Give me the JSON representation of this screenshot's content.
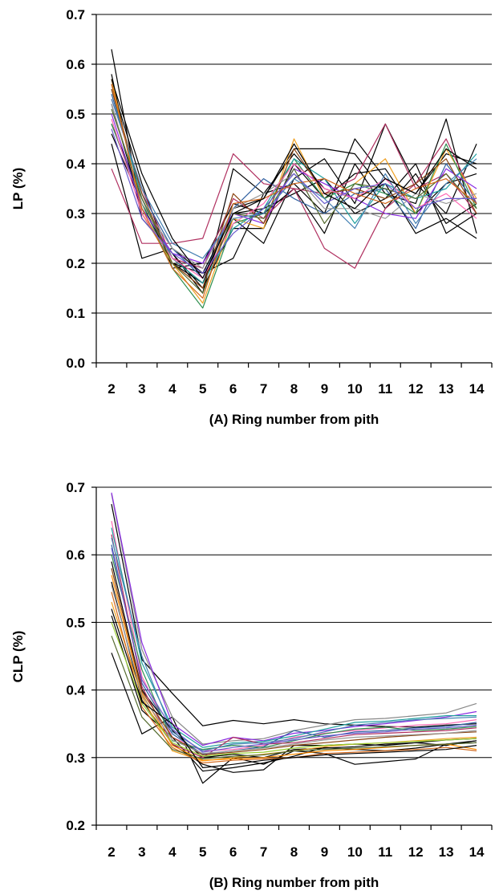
{
  "chart_data": [
    {
      "type": "line",
      "panel": "A",
      "xlabel": "(A)   Ring number from pith",
      "ylabel": "LP (%)",
      "categories": [
        "2",
        "3",
        "4",
        "5",
        "6",
        "7",
        "8",
        "9",
        "10",
        "11",
        "12",
        "13",
        "14"
      ],
      "ylim": [
        0.0,
        0.7
      ],
      "yticks": [
        "0.0",
        "0.1",
        "0.2",
        "0.3",
        "0.4",
        "0.5",
        "0.6",
        "0.7"
      ],
      "ytick_values": [
        0.0,
        0.1,
        0.2,
        0.3,
        0.4,
        0.5,
        0.6,
        0.7
      ],
      "grid": "horizontal",
      "legend": "none",
      "series": [
        {
          "color": "#000000",
          "values": [
            0.63,
            0.3,
            0.2,
            0.16,
            0.31,
            0.33,
            0.43,
            0.43,
            0.42,
            0.34,
            0.32,
            0.49,
            0.26
          ]
        },
        {
          "color": "#000000",
          "values": [
            0.58,
            0.29,
            0.22,
            0.14,
            0.39,
            0.34,
            0.36,
            0.3,
            0.45,
            0.37,
            0.34,
            0.42,
            0.4
          ]
        },
        {
          "color": "#000000",
          "values": [
            0.44,
            0.21,
            0.23,
            0.18,
            0.21,
            0.34,
            0.42,
            0.35,
            0.33,
            0.36,
            0.26,
            0.29,
            0.25
          ]
        },
        {
          "color": "#000000",
          "values": [
            0.48,
            0.33,
            0.21,
            0.16,
            0.29,
            0.24,
            0.37,
            0.41,
            0.32,
            0.48,
            0.36,
            0.3,
            0.44
          ]
        },
        {
          "color": "#000000",
          "values": [
            0.56,
            0.36,
            0.19,
            0.2,
            0.32,
            0.3,
            0.35,
            0.26,
            0.4,
            0.31,
            0.38,
            0.28,
            0.32
          ]
        },
        {
          "color": "#000000",
          "values": [
            0.52,
            0.31,
            0.22,
            0.15,
            0.27,
            0.27,
            0.4,
            0.33,
            0.38,
            0.39,
            0.3,
            0.36,
            0.38
          ]
        },
        {
          "color": "#000000",
          "values": [
            0.46,
            0.32,
            0.2,
            0.18,
            0.3,
            0.31,
            0.34,
            0.37,
            0.3,
            0.33,
            0.4,
            0.26,
            0.3
          ]
        },
        {
          "color": "#b03060",
          "values": [
            0.39,
            0.24,
            0.24,
            0.25,
            0.42,
            0.36,
            0.35,
            0.23,
            0.19,
            0.31,
            0.36,
            0.45,
            0.32
          ]
        },
        {
          "color": "#b03060",
          "values": [
            0.53,
            0.35,
            0.21,
            0.19,
            0.33,
            0.29,
            0.35,
            0.34,
            0.37,
            0.48,
            0.35,
            0.38,
            0.3
          ]
        },
        {
          "color": "#f0a020",
          "values": [
            0.57,
            0.3,
            0.2,
            0.12,
            0.29,
            0.27,
            0.45,
            0.33,
            0.36,
            0.41,
            0.3,
            0.43,
            0.33
          ]
        },
        {
          "color": "#2f8f4f",
          "values": [
            0.48,
            0.32,
            0.19,
            0.11,
            0.28,
            0.3,
            0.41,
            0.33,
            0.36,
            0.34,
            0.3,
            0.44,
            0.31
          ]
        },
        {
          "color": "#3060a0",
          "values": [
            0.54,
            0.34,
            0.23,
            0.17,
            0.31,
            0.37,
            0.33,
            0.3,
            0.34,
            0.35,
            0.27,
            0.4,
            0.32
          ]
        },
        {
          "color": "#20a0a0",
          "values": [
            0.55,
            0.33,
            0.21,
            0.16,
            0.27,
            0.31,
            0.41,
            0.37,
            0.28,
            0.36,
            0.33,
            0.35,
            0.42
          ]
        },
        {
          "color": "#8a2be2",
          "values": [
            0.5,
            0.31,
            0.22,
            0.2,
            0.3,
            0.28,
            0.39,
            0.36,
            0.33,
            0.3,
            0.29,
            0.39,
            0.35
          ]
        },
        {
          "color": "#999999",
          "values": [
            0.52,
            0.32,
            0.23,
            0.19,
            0.31,
            0.34,
            0.38,
            0.31,
            0.31,
            0.29,
            0.34,
            0.32,
            0.34
          ]
        },
        {
          "color": "#8b4513",
          "values": [
            0.55,
            0.34,
            0.2,
            0.15,
            0.34,
            0.28,
            0.43,
            0.34,
            0.35,
            0.33,
            0.36,
            0.41,
            0.3
          ]
        },
        {
          "color": "#ff69b4",
          "values": [
            0.49,
            0.3,
            0.21,
            0.17,
            0.28,
            0.32,
            0.4,
            0.35,
            0.33,
            0.37,
            0.31,
            0.34,
            0.29
          ]
        },
        {
          "color": "#556b2f",
          "values": [
            0.51,
            0.33,
            0.2,
            0.14,
            0.3,
            0.29,
            0.39,
            0.28,
            0.36,
            0.35,
            0.33,
            0.38,
            0.31
          ]
        },
        {
          "color": "#4682b4",
          "values": [
            0.53,
            0.35,
            0.24,
            0.21,
            0.29,
            0.3,
            0.37,
            0.33,
            0.27,
            0.38,
            0.28,
            0.36,
            0.41
          ]
        },
        {
          "color": "#d2691e",
          "values": [
            0.56,
            0.31,
            0.19,
            0.13,
            0.32,
            0.33,
            0.36,
            0.37,
            0.34,
            0.32,
            0.35,
            0.37,
            0.32
          ]
        },
        {
          "color": "#6a5acd",
          "values": [
            0.47,
            0.29,
            0.22,
            0.18,
            0.26,
            0.31,
            0.38,
            0.32,
            0.35,
            0.36,
            0.31,
            0.33,
            0.33
          ]
        },
        {
          "color": "#000000",
          "values": [
            0.57,
            0.38,
            0.25,
            0.17,
            0.3,
            0.33,
            0.44,
            0.34,
            0.31,
            0.37,
            0.34,
            0.43,
            0.39
          ]
        }
      ]
    },
    {
      "type": "line",
      "panel": "B",
      "xlabel": "(B)   Ring number from pith",
      "ylabel": "CLP (%)",
      "categories": [
        "2",
        "3",
        "4",
        "5",
        "6",
        "7",
        "8",
        "9",
        "10",
        "11",
        "12",
        "13",
        "14"
      ],
      "ylim": [
        0.2,
        0.7
      ],
      "yticks": [
        "0.2",
        "0.3",
        "0.4",
        "0.5",
        "0.6",
        "0.7"
      ],
      "ytick_values": [
        0.2,
        0.3,
        0.4,
        0.5,
        0.6,
        0.7
      ],
      "grid": "horizontal",
      "legend": "none",
      "series": [
        {
          "color": "#000000",
          "values": [
            0.675,
            0.445,
            0.395,
            0.347,
            0.355,
            0.35,
            0.356,
            0.35,
            0.348,
            0.346,
            0.345,
            0.348,
            0.35
          ]
        },
        {
          "color": "#000000",
          "values": [
            0.455,
            0.335,
            0.36,
            0.262,
            0.3,
            0.29,
            0.31,
            0.306,
            0.29,
            0.294,
            0.298,
            0.32,
            0.322
          ]
        },
        {
          "color": "#000000",
          "values": [
            0.51,
            0.37,
            0.33,
            0.28,
            0.285,
            0.292,
            0.302,
            0.315,
            0.312,
            0.31,
            0.314,
            0.32,
            0.325
          ]
        },
        {
          "color": "#000000",
          "values": [
            0.56,
            0.385,
            0.32,
            0.29,
            0.278,
            0.282,
            0.318,
            0.318,
            0.32,
            0.318,
            0.322,
            0.318,
            0.325
          ]
        },
        {
          "color": "#000000",
          "values": [
            0.59,
            0.4,
            0.34,
            0.3,
            0.305,
            0.3,
            0.312,
            0.314,
            0.316,
            0.32,
            0.322,
            0.326,
            0.328
          ]
        },
        {
          "color": "#888888",
          "values": [
            0.69,
            0.46,
            0.36,
            0.32,
            0.325,
            0.328,
            0.34,
            0.348,
            0.356,
            0.358,
            0.362,
            0.366,
            0.38
          ]
        },
        {
          "color": "#8a2be2",
          "values": [
            0.692,
            0.47,
            0.35,
            0.318,
            0.33,
            0.325,
            0.336,
            0.34,
            0.346,
            0.35,
            0.355,
            0.36,
            0.368
          ]
        },
        {
          "color": "#ff69b4",
          "values": [
            0.65,
            0.42,
            0.33,
            0.31,
            0.312,
            0.318,
            0.33,
            0.336,
            0.34,
            0.344,
            0.348,
            0.35,
            0.356
          ]
        },
        {
          "color": "#20a0a0",
          "values": [
            0.64,
            0.44,
            0.345,
            0.315,
            0.322,
            0.324,
            0.332,
            0.342,
            0.352,
            0.354,
            0.358,
            0.362,
            0.362
          ]
        },
        {
          "color": "#3060a0",
          "values": [
            0.615,
            0.41,
            0.335,
            0.305,
            0.31,
            0.316,
            0.34,
            0.33,
            0.338,
            0.34,
            0.344,
            0.346,
            0.352
          ]
        },
        {
          "color": "#2f8f4f",
          "values": [
            0.6,
            0.43,
            0.325,
            0.312,
            0.318,
            0.315,
            0.325,
            0.335,
            0.342,
            0.345,
            0.34,
            0.342,
            0.346
          ]
        },
        {
          "color": "#b03060",
          "values": [
            0.63,
            0.405,
            0.32,
            0.3,
            0.33,
            0.32,
            0.322,
            0.328,
            0.334,
            0.336,
            0.338,
            0.34,
            0.344
          ]
        },
        {
          "color": "#f0a020",
          "values": [
            0.53,
            0.39,
            0.31,
            0.295,
            0.3,
            0.305,
            0.31,
            0.316,
            0.32,
            0.322,
            0.325,
            0.328,
            0.33
          ]
        },
        {
          "color": "#ff8c00",
          "values": [
            0.57,
            0.395,
            0.318,
            0.296,
            0.298,
            0.3,
            0.305,
            0.31,
            0.312,
            0.315,
            0.318,
            0.32,
            0.312
          ]
        },
        {
          "color": "#d2691e",
          "values": [
            0.545,
            0.375,
            0.315,
            0.292,
            0.296,
            0.298,
            0.3,
            0.306,
            0.308,
            0.31,
            0.312,
            0.315,
            0.31
          ]
        },
        {
          "color": "#556b2f",
          "values": [
            0.48,
            0.36,
            0.312,
            0.298,
            0.302,
            0.304,
            0.31,
            0.312,
            0.314,
            0.316,
            0.318,
            0.32,
            0.322
          ]
        },
        {
          "color": "#9acd32",
          "values": [
            0.5,
            0.38,
            0.322,
            0.302,
            0.306,
            0.308,
            0.314,
            0.318,
            0.32,
            0.322,
            0.324,
            0.326,
            0.328
          ]
        },
        {
          "color": "#4682b4",
          "values": [
            0.625,
            0.45,
            0.338,
            0.31,
            0.32,
            0.322,
            0.328,
            0.338,
            0.348,
            0.352,
            0.356,
            0.358,
            0.36
          ]
        },
        {
          "color": "#8b4513",
          "values": [
            0.58,
            0.398,
            0.33,
            0.304,
            0.308,
            0.312,
            0.318,
            0.322,
            0.326,
            0.33,
            0.333,
            0.336,
            0.338
          ]
        },
        {
          "color": "#6a5acd",
          "values": [
            0.61,
            0.415,
            0.342,
            0.308,
            0.315,
            0.32,
            0.326,
            0.332,
            0.336,
            0.338,
            0.342,
            0.344,
            0.348
          ]
        },
        {
          "color": "#999999",
          "values": [
            0.555,
            0.392,
            0.326,
            0.306,
            0.31,
            0.314,
            0.32,
            0.326,
            0.33,
            0.332,
            0.334,
            0.336,
            0.34
          ]
        },
        {
          "color": "#000000",
          "values": [
            0.52,
            0.382,
            0.35,
            0.285,
            0.29,
            0.296,
            0.3,
            0.304,
            0.306,
            0.308,
            0.31,
            0.312,
            0.318
          ]
        }
      ]
    }
  ]
}
